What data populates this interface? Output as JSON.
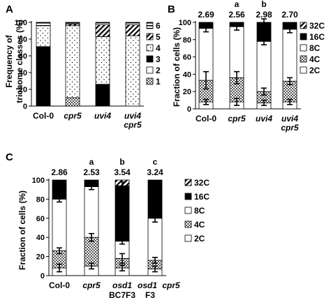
{
  "chart_data": [
    {
      "panel": "A",
      "type": "bar",
      "stacked": true,
      "ylabel": "Frequency of trichome classes (%)",
      "ylim": [
        0,
        100
      ],
      "yticks": [
        0,
        20,
        40,
        60,
        80,
        100
      ],
      "categories": [
        "Col-0",
        "cpr5",
        "uvi4",
        "uvi4 cpr5"
      ],
      "series": [
        {
          "name": "1",
          "values": [
            0,
            10,
            0,
            0
          ]
        },
        {
          "name": "2",
          "values": [
            0,
            0,
            0,
            0
          ]
        },
        {
          "name": "3",
          "values": [
            71,
            0,
            26,
            0
          ]
        },
        {
          "name": "4",
          "values": [
            25,
            86,
            57,
            84
          ]
        },
        {
          "name": "5",
          "values": [
            0,
            2,
            14,
            13
          ]
        },
        {
          "name": "6",
          "values": [
            4,
            2,
            3,
            3
          ]
        }
      ],
      "errors": [
        [
          null,
          5
        ],
        [
          null,
          5
        ],
        [
          null,
          5
        ],
        [
          84,
          5
        ]
      ],
      "legend": "right"
    },
    {
      "panel": "B",
      "type": "bar",
      "stacked": true,
      "ylabel": "Fraction of cells (%)",
      "ylim": [
        0,
        100
      ],
      "yticks": [
        0,
        20,
        40,
        60,
        80,
        100
      ],
      "categories": [
        "Col-0",
        "cpr5",
        "uvi4",
        "uvi4 cpr5"
      ],
      "top_values": [
        "2.69",
        "2.56",
        "2.98",
        "2.70"
      ],
      "letters": [
        "",
        "a",
        "b",
        ""
      ],
      "series": [
        {
          "name": "2C",
          "values": [
            8,
            8,
            7,
            8
          ]
        },
        {
          "name": "4C",
          "values": [
            25,
            28,
            13,
            24
          ]
        },
        {
          "name": "8C",
          "values": [
            60,
            59,
            58,
            60
          ]
        },
        {
          "name": "16C",
          "values": [
            7,
            5,
            22,
            8
          ]
        },
        {
          "name": "32C",
          "values": [
            0,
            0,
            0,
            0
          ]
        }
      ],
      "errors": [
        [
          [
            8,
            3
          ],
          [
            33,
            10
          ],
          [
            93,
            4
          ]
        ],
        [
          [
            8,
            4
          ],
          [
            36,
            7
          ],
          [
            95,
            4
          ]
        ],
        [
          [
            7,
            3
          ],
          [
            20,
            4
          ],
          [
            78,
            4
          ],
          [
            100,
            4
          ]
        ],
        [
          [
            8,
            3
          ],
          [
            32,
            4
          ],
          [
            92,
            4
          ]
        ]
      ],
      "legend": "right"
    },
    {
      "panel": "C",
      "type": "bar",
      "stacked": true,
      "ylabel": "Fraction of cells (%)",
      "ylim": [
        0,
        100
      ],
      "yticks": [
        0,
        20,
        40,
        60,
        80,
        100
      ],
      "categories": [
        "Col-0",
        "cpr5",
        "osd1 BC7F3",
        "osd1cpr5 F3"
      ],
      "top_values": [
        "2.86",
        "2.53",
        "3.54",
        "3.24"
      ],
      "letters": [
        "",
        "a",
        "b",
        "c"
      ],
      "series": [
        {
          "name": "2C",
          "values": [
            8,
            10,
            8,
            7
          ]
        },
        {
          "name": "4C",
          "values": [
            18,
            30,
            10,
            9
          ]
        },
        {
          "name": "8C",
          "values": [
            54,
            53,
            18,
            44
          ]
        },
        {
          "name": "16C",
          "values": [
            20,
            7,
            58,
            40
          ]
        },
        {
          "name": "32C",
          "values": [
            0,
            0,
            6,
            0
          ]
        }
      ],
      "errors": [
        [
          [
            8,
            4
          ],
          [
            26,
            3
          ],
          [
            80,
            3
          ]
        ],
        [
          [
            10,
            3
          ],
          [
            40,
            4
          ],
          [
            93,
            3
          ]
        ],
        [
          [
            8,
            3
          ],
          [
            18,
            5
          ],
          [
            36,
            3
          ],
          [
            94,
            4
          ]
        ],
        [
          [
            7,
            3
          ],
          [
            16,
            3
          ],
          [
            60,
            4
          ]
        ]
      ],
      "legend": "right"
    }
  ],
  "labels": {
    "panelA": "A",
    "panelB": "B",
    "panelC": "C",
    "ylabelA_1": "Frequency of",
    "ylabelA_2": "trichome classes (%)",
    "ylabelB": "Fraction of cells (%)",
    "ylabelC": "Fraction of cells (%)",
    "catA": [
      "Col-0",
      "cpr5",
      "uvi4",
      "uvi4",
      "cpr5"
    ],
    "catB": [
      "Col-0",
      "cpr5",
      "uvi4",
      "uvi4",
      "cpr5"
    ],
    "catC": [
      "Col-0",
      "cpr5",
      "osd1",
      "BC7F3",
      "osd1",
      "cpr5",
      "F3"
    ],
    "legendA": [
      "6",
      "5",
      "4",
      "3",
      "2",
      "1"
    ],
    "legendB": [
      "32C",
      "16C",
      "8C",
      "4C",
      "2C"
    ],
    "legendC": [
      "32C",
      "16C",
      "8C",
      "4C",
      "2C"
    ],
    "yticks": [
      "0",
      "20",
      "40",
      "60",
      "80",
      "100"
    ]
  }
}
